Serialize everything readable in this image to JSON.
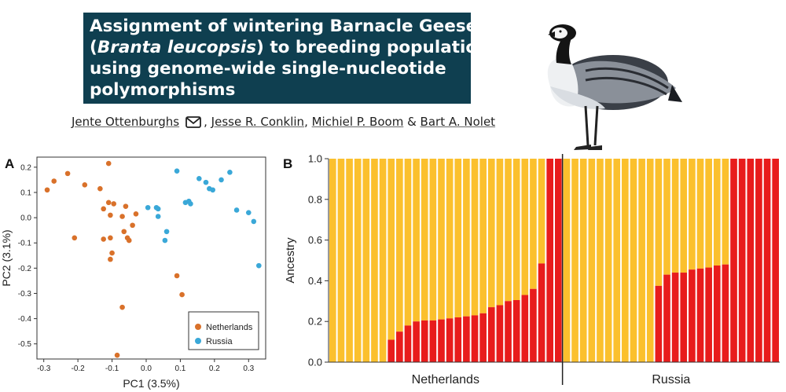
{
  "header": {
    "title_lines": [
      {
        "text": "Assignment of wintering Barnacle Geese",
        "italic": ""
      },
      {
        "pre": "(",
        "italic": "Branta leucopsis",
        "post": ") to breeding populations"
      },
      {
        "text": "using genome-wide single-nucleotide"
      },
      {
        "text": "polymorphisms"
      }
    ],
    "authors": [
      "Jente Ottenburghs",
      "Jesse R. Conklin",
      "Michiel P. Boom",
      "Bart A. Nolet"
    ],
    "author_separators": [
      ", ",
      ", ",
      " & "
    ],
    "mail_icon": "envelope-icon",
    "bird_icon": "barnacle-goose-illustration"
  },
  "colors": {
    "netherlands": "#d9712a",
    "russia": "#3aa8d8",
    "yellow": "#fbc02d",
    "red": "#e81c1c",
    "title_bg": "#0f3f50"
  },
  "chart_data": [
    {
      "panel": "A",
      "type": "scatter",
      "xlabel": "PC1 (3.5%)",
      "ylabel": "PC2 (3.1%)",
      "xlim": [
        -0.32,
        0.35
      ],
      "ylim": [
        -0.56,
        0.24
      ],
      "xticks": [
        -0.3,
        -0.2,
        -0.1,
        0.0,
        0.1,
        0.2,
        0.3
      ],
      "yticks": [
        0.2,
        0.1,
        0.0,
        -0.1,
        -0.2,
        -0.3,
        -0.4,
        -0.5
      ],
      "xtick_labels": [
        "-0.3",
        "-0.2",
        "-0.1",
        "0.0",
        "0.1",
        "0.2",
        "0.3"
      ],
      "ytick_labels": [
        "0.2",
        "0.1",
        "0.0",
        "-0.1",
        "-0.2",
        "-0.3",
        "-0.4",
        "-0.5"
      ],
      "legend": {
        "placement": "bottom-right",
        "entries": [
          "Netherlands",
          "Russia"
        ]
      },
      "series": [
        {
          "name": "Netherlands",
          "color": "#d9712a",
          "points": [
            [
              -0.29,
              0.11
            ],
            [
              -0.27,
              0.145
            ],
            [
              -0.23,
              0.175
            ],
            [
              -0.21,
              -0.08
            ],
            [
              -0.18,
              0.13
            ],
            [
              -0.135,
              0.115
            ],
            [
              -0.125,
              0.035
            ],
            [
              -0.125,
              -0.085
            ],
            [
              -0.11,
              0.215
            ],
            [
              -0.11,
              0.06
            ],
            [
              -0.105,
              0.01
            ],
            [
              -0.105,
              -0.08
            ],
            [
              -0.1,
              -0.14
            ],
            [
              -0.105,
              -0.165
            ],
            [
              -0.095,
              0.055
            ],
            [
              -0.07,
              0.005
            ],
            [
              -0.06,
              0.045
            ],
            [
              -0.065,
              -0.055
            ],
            [
              -0.055,
              -0.08
            ],
            [
              -0.05,
              -0.09
            ],
            [
              -0.04,
              -0.03
            ],
            [
              -0.03,
              0.015
            ],
            [
              -0.07,
              -0.355
            ],
            [
              -0.085,
              -0.545
            ],
            [
              0.09,
              -0.23
            ],
            [
              0.105,
              -0.305
            ]
          ]
        },
        {
          "name": "Russia",
          "color": "#3aa8d8",
          "points": [
            [
              0.005,
              0.04
            ],
            [
              0.03,
              0.04
            ],
            [
              0.035,
              0.035
            ],
            [
              0.035,
              0.005
            ],
            [
              0.055,
              -0.09
            ],
            [
              0.06,
              -0.055
            ],
            [
              0.09,
              0.185
            ],
            [
              0.115,
              0.06
            ],
            [
              0.125,
              0.065
            ],
            [
              0.13,
              0.055
            ],
            [
              0.155,
              0.155
            ],
            [
              0.175,
              0.14
            ],
            [
              0.185,
              0.115
            ],
            [
              0.195,
              0.11
            ],
            [
              0.22,
              0.15
            ],
            [
              0.245,
              0.18
            ],
            [
              0.265,
              0.03
            ],
            [
              0.3,
              0.02
            ],
            [
              0.315,
              -0.015
            ],
            [
              0.33,
              -0.19
            ]
          ]
        }
      ]
    },
    {
      "panel": "B",
      "type": "bar",
      "stacked": true,
      "ylabel": "Ancestry",
      "ylim": [
        0,
        1.0
      ],
      "yticks": [
        0.0,
        0.2,
        0.4,
        0.6,
        0.8,
        1.0
      ],
      "ytick_labels": [
        "0.0",
        "0.2",
        "0.4",
        "0.6",
        "0.8",
        "1.0"
      ],
      "group_labels": [
        "Netherlands",
        "Russia"
      ],
      "groups": [
        {
          "name": "Netherlands",
          "red_values": [
            0,
            0,
            0,
            0,
            0,
            0,
            0,
            0.11,
            0.15,
            0.18,
            0.2,
            0.205,
            0.205,
            0.21,
            0.215,
            0.22,
            0.225,
            0.23,
            0.24,
            0.27,
            0.28,
            0.3,
            0.305,
            0.33,
            0.36,
            0.485,
            1.0,
            1.0
          ]
        },
        {
          "name": "Russia",
          "red_values": [
            0,
            0,
            0,
            0,
            0,
            0,
            0,
            0,
            0,
            0,
            0,
            0.375,
            0.43,
            0.44,
            0.44,
            0.455,
            0.46,
            0.465,
            0.475,
            0.48,
            1.0,
            1.0,
            1.0,
            1.0,
            1.0,
            1.0
          ]
        }
      ]
    }
  ],
  "panel_labels": [
    "A",
    "B"
  ]
}
